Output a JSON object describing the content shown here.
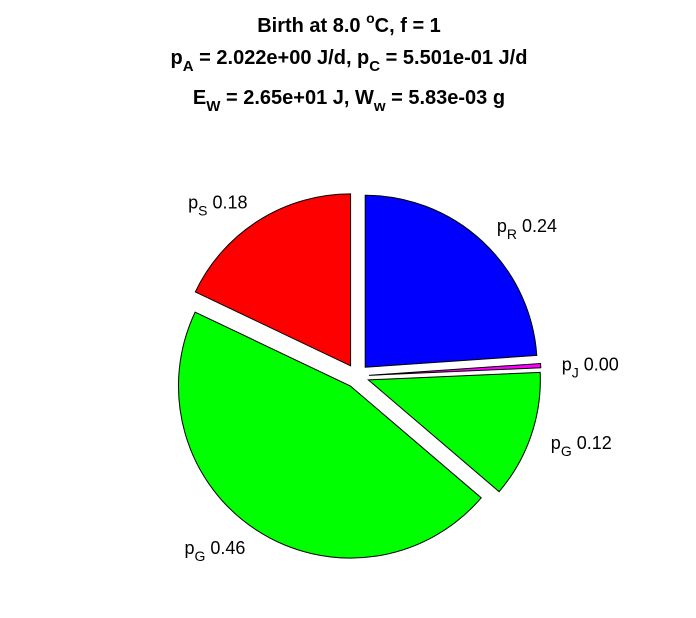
{
  "chart_data": {
    "type": "pie",
    "title": {
      "line1": {
        "pre": "Birth at 8.0 ",
        "sup": "o",
        "post": "C, f = 1"
      },
      "line2": {
        "a": "p",
        "a_sub": "A",
        "b": " = 2.022e+00 J/d, p",
        "b_sub": "C",
        "c": " = 5.501e-01 J/d"
      },
      "line3": {
        "a": "E",
        "a_sub": "W",
        "b": " = 2.65e+01 J, W",
        "b_sub": "w",
        "c": " = 5.83e-03 g"
      }
    },
    "slices": [
      {
        "key": "pR",
        "label": "p",
        "sub": "R",
        "value_text": "0.24",
        "value": 0.24,
        "color": "#0000ff"
      },
      {
        "key": "pJ",
        "label": "p",
        "sub": "J",
        "value_text": "0.00",
        "value": 0.004,
        "color": "#ff00ff"
      },
      {
        "key": "pG1",
        "label": "p",
        "sub": "G",
        "value_text": "0.12",
        "value": 0.12,
        "color": "#00ff00"
      },
      {
        "key": "pG2",
        "label": "p",
        "sub": "G",
        "value_text": "0.46",
        "value": 0.46,
        "color": "#00ff00"
      },
      {
        "key": "pS",
        "label": "p",
        "sub": "S",
        "value_text": "0.18",
        "value": 0.18,
        "color": "#ff0000"
      }
    ],
    "start_angle_deg": 90,
    "direction": "clockwise",
    "exploded": true
  }
}
